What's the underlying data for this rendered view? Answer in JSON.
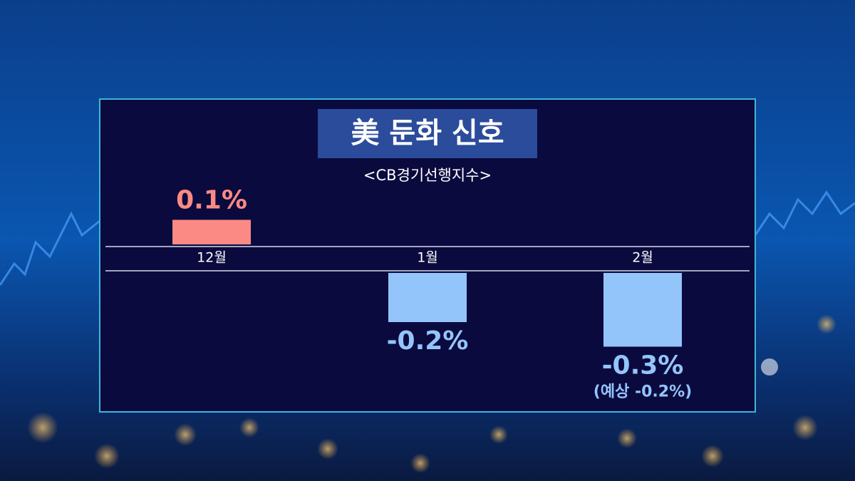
{
  "chart_data": {
    "type": "bar",
    "title": "美 둔화 신호",
    "subtitle": "<CB경기선행지수>",
    "categories": [
      "12월",
      "1월",
      "2월"
    ],
    "values": [
      0.1,
      -0.2,
      -0.3
    ],
    "value_labels": [
      "0.1%",
      "-0.2%",
      "-0.3%"
    ],
    "annotation": "(예상 -0.2%)",
    "positive_color": "#fb8a84",
    "negative_color": "#93c5fb"
  }
}
